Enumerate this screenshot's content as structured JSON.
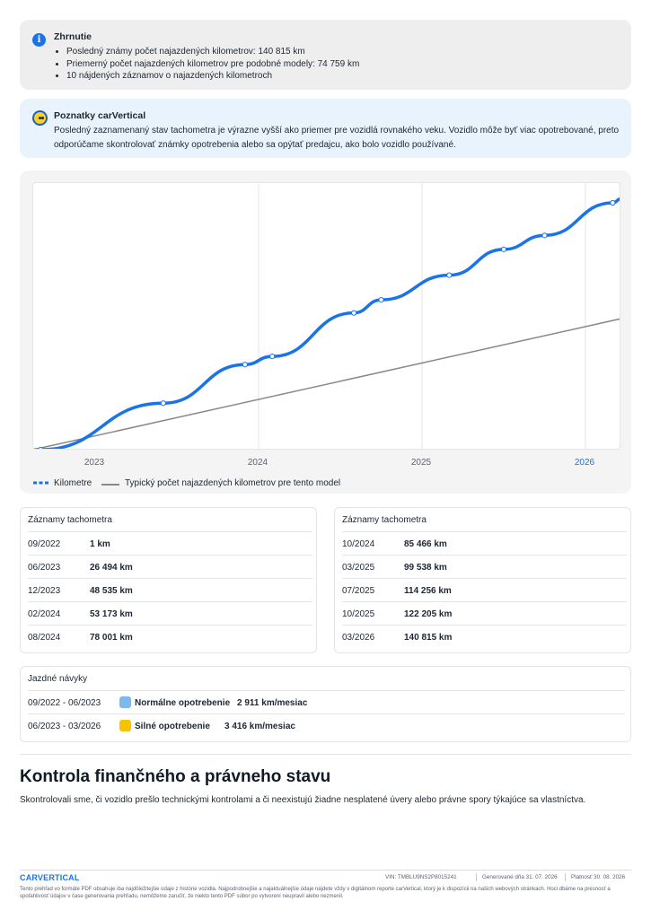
{
  "summary": {
    "title": "Zhrnutie",
    "items": [
      "Posledný známy počet najazdených kilometrov: 140 815 km",
      "Priemerný počet najazdených kilometrov pre podobné modely: 74 759 km",
      "10 nájdených záznamov o najazdených kilometroch"
    ]
  },
  "insights": {
    "title": "Poznatky carVertical",
    "text": "Posledný zaznamenaný stav tachometra je výrazne vyšší ako priemer pre vozidlá rovnakého veku. Vozidlo môže byť viac opotrebované, preto odporúčame skontrolovať známky opotrebenia alebo sa opýtať predajcu, ako bolo vozidlo používané."
  },
  "chart_data": {
    "type": "line",
    "x_ticks": [
      "2023",
      "2024",
      "2025",
      "2026"
    ],
    "active_tick": "2026",
    "legend_position": "bottom-left",
    "grid": true,
    "ylim": [
      0,
      150000
    ],
    "series": [
      {
        "name": "Kilometre",
        "color": "#1a73e8",
        "style": "solid-with-markers",
        "points": [
          {
            "date": "2022-09",
            "km": 1
          },
          {
            "date": "2023-06",
            "km": 26494
          },
          {
            "date": "2023-12",
            "km": 48535
          },
          {
            "date": "2024-02",
            "km": 53173
          },
          {
            "date": "2024-08",
            "km": 78001
          },
          {
            "date": "2024-10",
            "km": 85466
          },
          {
            "date": "2025-03",
            "km": 99538
          },
          {
            "date": "2025-07",
            "km": 114256
          },
          {
            "date": "2025-10",
            "km": 122205
          },
          {
            "date": "2026-03",
            "km": 140815
          }
        ]
      },
      {
        "name": "Typický počet najazdených kilometrov pre tento model",
        "color": "#888888",
        "style": "solid",
        "points": [
          {
            "date": "2022-09",
            "km": 0
          },
          {
            "date": "2026-03",
            "km": 74759
          }
        ]
      }
    ]
  },
  "odometer_left": {
    "title": "Záznamy tachometra",
    "rows": [
      {
        "date": "09/2022",
        "value": "1 km"
      },
      {
        "date": "06/2023",
        "value": "26 494 km"
      },
      {
        "date": "12/2023",
        "value": "48 535 km"
      },
      {
        "date": "02/2024",
        "value": "53 173 km"
      },
      {
        "date": "08/2024",
        "value": "78 001 km"
      }
    ]
  },
  "odometer_right": {
    "title": "Záznamy tachometra",
    "rows": [
      {
        "date": "10/2024",
        "value": "85 466 km"
      },
      {
        "date": "03/2025",
        "value": "99 538 km"
      },
      {
        "date": "07/2025",
        "value": "114 256 km"
      },
      {
        "date": "10/2025",
        "value": "122 205 km"
      },
      {
        "date": "03/2026",
        "value": "140 815 km"
      }
    ]
  },
  "habits": {
    "title": "Jazdné návyky",
    "rows": [
      {
        "period": "09/2022 - 06/2023",
        "label": "Normálne opotrebenie",
        "rate": "2 911 km/mesiac",
        "color": "#7fb8f0"
      },
      {
        "period": "06/2023 - 03/2026",
        "label": "Silné opotrebenie",
        "rate": "3 416 km/mesiac",
        "color": "#f5c400"
      }
    ]
  },
  "section": {
    "title": "Kontrola finančného a právneho stavu",
    "lead": "Skontrolovali sme, či vozidlo prešlo technickými kontrolami a či neexistujú žiadne nesplatené úvery alebo právne spory týkajúce sa vlastníctva."
  },
  "footer": {
    "logo": "CARVERTICAL",
    "vin": "VIN: TMBLU9NS2P8015241",
    "generated": "Generované dňa 31. 07. 2026",
    "valid": "Platnosť 30. 08. 2026",
    "disclaimer": "Tento prehľad vo formáte PDF obsahuje iba najdôležitejšie údaje z histórie vozidla. Najpodrobnejšie a najaktuálnejšie údaje nájdete vždy v digitálnom reporte carVertical, ktorý je k dispozícii na našich webových stránkach. Hoci dbáme na presnosť a spoľahlivosť údajov v čase generovania prehľadu, nemôžeme zaručiť, že niekto tento PDF súbor po vytvorení neupravil alebo nezmenil."
  }
}
